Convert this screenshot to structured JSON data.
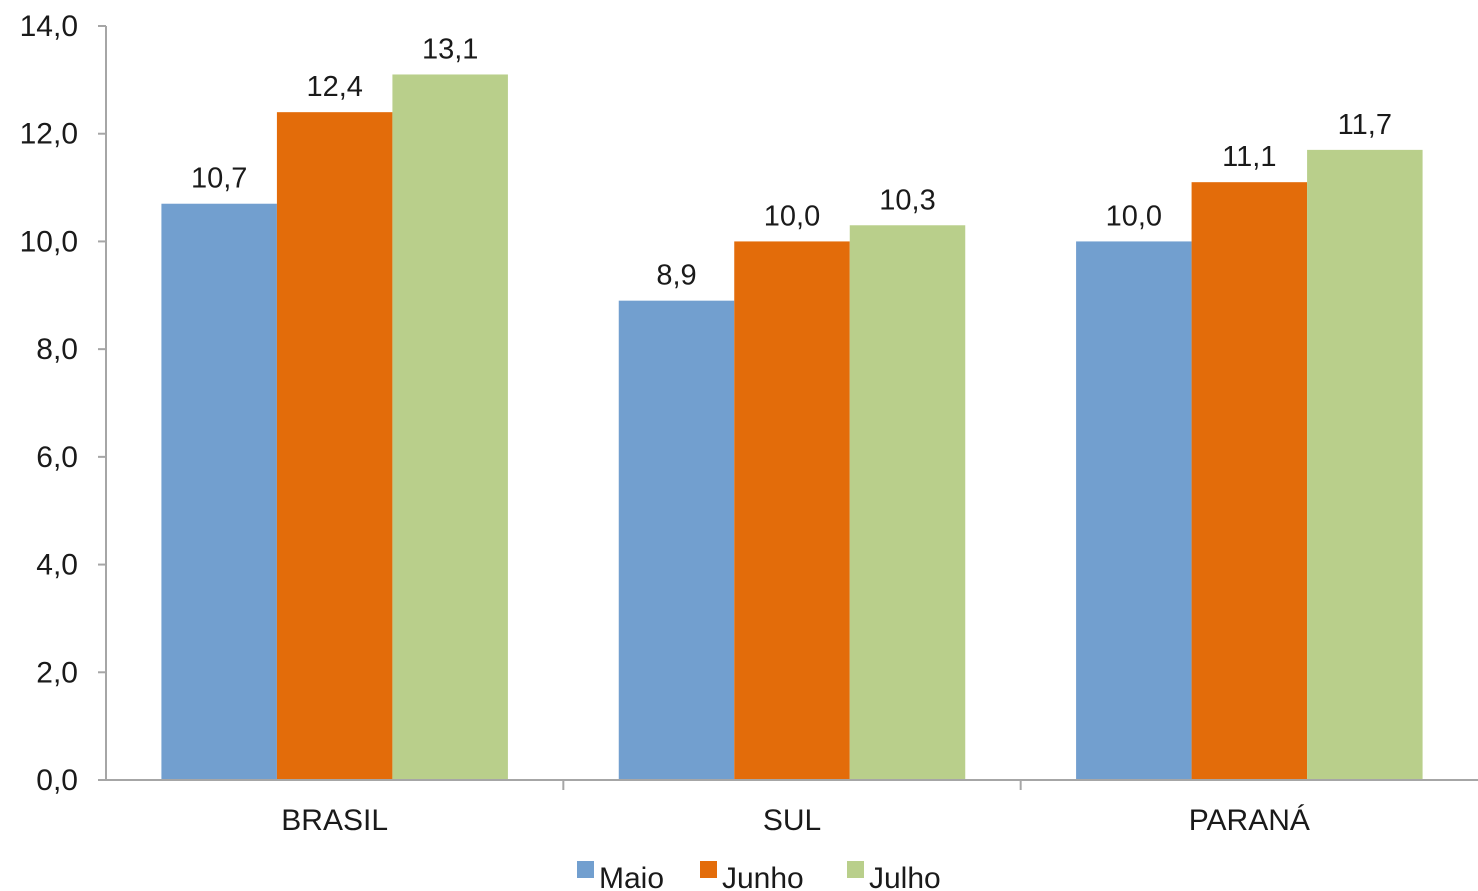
{
  "chart_data": {
    "type": "bar",
    "categories": [
      "BRASIL",
      "SUL",
      "PARANÁ"
    ],
    "series": [
      {
        "name": "Maio",
        "values": [
          10.7,
          8.9,
          10.0
        ],
        "labels": [
          "10,7",
          "8,9",
          "10,0"
        ],
        "color": "#729fcf"
      },
      {
        "name": "Junho",
        "values": [
          12.4,
          10.0,
          11.1
        ],
        "labels": [
          "12,4",
          "10,0",
          "11,1"
        ],
        "color": "#e36c0a"
      },
      {
        "name": "Julho",
        "values": [
          13.1,
          10.3,
          11.7
        ],
        "labels": [
          "13,1",
          "10,3",
          "11,7"
        ],
        "color": "#b9cf8b"
      }
    ],
    "ylim": [
      0,
      14
    ],
    "yticks": [
      0,
      2,
      4,
      6,
      8,
      10,
      12,
      14
    ],
    "ytick_labels": [
      "0,0",
      "2,0",
      "4,0",
      "6,0",
      "8,0",
      "10,0",
      "12,0",
      "14,0"
    ],
    "xlabel": "",
    "ylabel": "",
    "grid": false,
    "legend_position": "bottom-center"
  }
}
